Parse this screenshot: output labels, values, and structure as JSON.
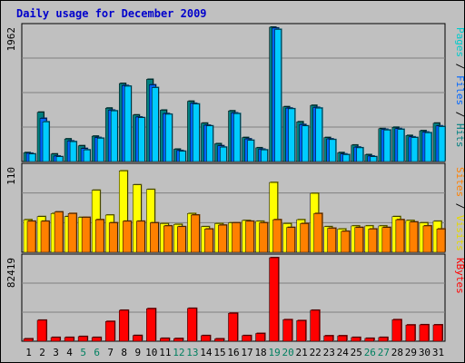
{
  "chart_data": {
    "type": "bar",
    "title": "Daily usage for December 2009",
    "categories": [
      "1",
      "2",
      "3",
      "4",
      "5",
      "6",
      "7",
      "8",
      "9",
      "10",
      "11",
      "12",
      "13",
      "14",
      "15",
      "16",
      "17",
      "18",
      "19",
      "20",
      "21",
      "22",
      "23",
      "24",
      "25",
      "26",
      "27",
      "28",
      "29",
      "30",
      "31"
    ],
    "weekend_days": [
      "5",
      "6",
      "12",
      "13",
      "19",
      "20",
      "26",
      "27"
    ],
    "panels": [
      {
        "name": "hits-files-pages",
        "ymax_label": "1962",
        "ylim": [
          0,
          1962
        ],
        "legend": [
          {
            "text": "Pages",
            "color": "#00cccc"
          },
          {
            "text": " / ",
            "color": "#000000"
          },
          {
            "text": "Files",
            "color": "#0066ff"
          },
          {
            "text": " / ",
            "color": "#000000"
          },
          {
            "text": "Hits",
            "color": "#008080"
          }
        ],
        "series": [
          {
            "name": "Hits",
            "color": "#008080",
            "values": [
              130,
              720,
              110,
              330,
              230,
              370,
              780,
              1140,
              680,
              1200,
              750,
              180,
              880,
              560,
              260,
              740,
              350,
              200,
              1962,
              800,
              580,
              820,
              350,
              130,
              240,
              100,
              480,
              500,
              380,
              450,
              560
            ]
          },
          {
            "name": "Files",
            "color": "#0066ff",
            "values": [
              120,
              630,
              80,
              300,
              190,
              350,
              750,
              1110,
              650,
              1120,
              700,
              160,
              850,
              530,
              230,
              710,
              330,
              180,
              1950,
              780,
              540,
              790,
              330,
              110,
              210,
              80,
              470,
              480,
              360,
              430,
              520
            ]
          },
          {
            "name": "Pages",
            "color": "#00ccff",
            "values": [
              110,
              580,
              70,
              290,
              170,
              340,
              740,
              1100,
              640,
              1080,
              690,
              150,
              840,
              520,
              210,
              700,
              310,
              170,
              1930,
              770,
              520,
              780,
              320,
              100,
              200,
              70,
              460,
              470,
              350,
              420,
              510
            ]
          }
        ]
      },
      {
        "name": "visits-sites",
        "ymax_label": "110",
        "ylim": [
          0,
          110
        ],
        "legend": [
          {
            "text": "Sites",
            "color": "#ff8000"
          },
          {
            "text": " / ",
            "color": "#000000"
          },
          {
            "text": "Visits",
            "color": "#e6d800"
          }
        ],
        "series": [
          {
            "name": "Visits",
            "color": "#ffff00",
            "values": [
              42,
              46,
              50,
              46,
              45,
              80,
              48,
              105,
              87,
              81,
              37,
              36,
              50,
              33,
              37,
              38,
              41,
              40,
              90,
              37,
              42,
              76,
              33,
              30,
              34,
              34,
              34,
              46,
              41,
              38,
              40
            ]
          },
          {
            "name": "Sites",
            "color": "#ff8000",
            "values": [
              40,
              40,
              52,
              50,
              45,
              42,
              38,
              40,
              40,
              38,
              34,
              33,
              48,
              30,
              35,
              38,
              40,
              38,
              42,
              32,
              37,
              50,
              31,
              27,
              32,
              30,
              32,
              42,
              39,
              34,
              30
            ]
          }
        ]
      },
      {
        "name": "kbytes",
        "ymax_label": "82419",
        "ylim": [
          0,
          82419
        ],
        "legend": [
          {
            "text": "KBytes",
            "color": "#ff0000"
          }
        ],
        "series": [
          {
            "name": "KBytes",
            "color": "#ff0000",
            "values": [
              2300,
              20700,
              3700,
              3700,
              4600,
              3700,
              19500,
              30500,
              5600,
              32100,
              2800,
              2600,
              32400,
              5500,
              2300,
              27600,
              5500,
              7600,
              82419,
              21200,
              20300,
              30500,
              5300,
              5300,
              3700,
              2800,
              3700,
              21200,
              16000,
              16200,
              16100
            ]
          }
        ]
      }
    ]
  }
}
